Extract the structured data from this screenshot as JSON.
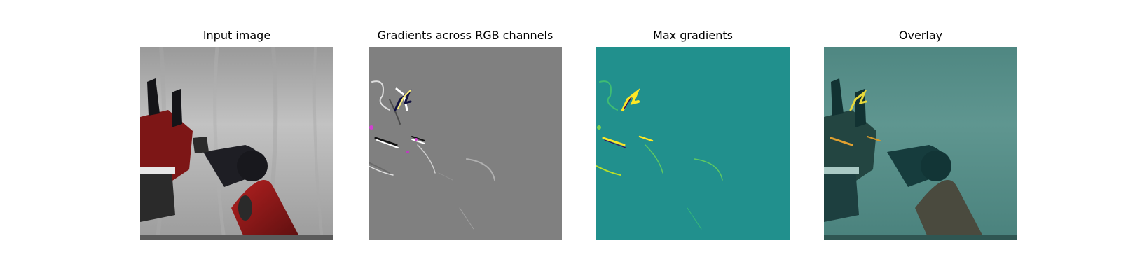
{
  "panels": [
    {
      "title": "Input image",
      "icon": "robot-arm-photo"
    },
    {
      "title": "Gradients across RGB channels",
      "icon": "gradient-map-gray"
    },
    {
      "title": "Max gradients",
      "icon": "gradient-map-viridis"
    },
    {
      "title": "Overlay",
      "icon": "overlay-image"
    }
  ],
  "colors": {
    "gray_bg": "#7f7f7f",
    "viridis_bg": "#21908d",
    "highlight": "#fde725",
    "robot_red": "#8b1a1a",
    "backdrop": "#bcbcbc"
  }
}
